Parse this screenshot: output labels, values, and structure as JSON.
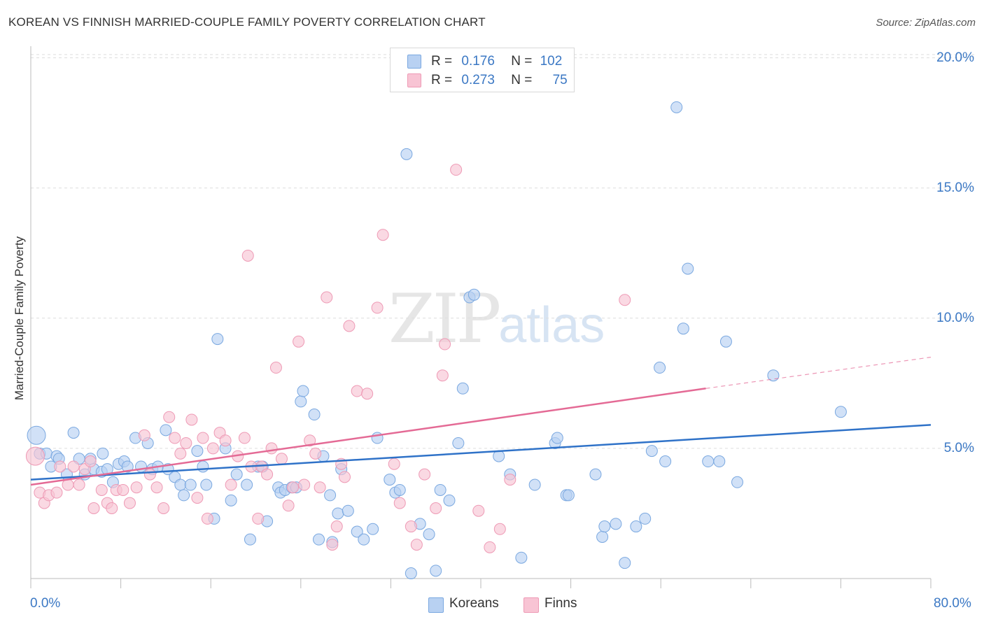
{
  "title": "KOREAN VS FINNISH MARRIED-COUPLE FAMILY POVERTY CORRELATION CHART",
  "source": "Source: ZipAtlas.com",
  "watermark": {
    "zip": "ZIP",
    "atlas": "atlas"
  },
  "legend": {
    "koreans": {
      "r_label": "R =",
      "r_value": "0.176",
      "n_label": "N =",
      "n_value": "102"
    },
    "finns": {
      "r_label": "R =",
      "r_value": "0.273",
      "n_label": "N =",
      "n_value": "75"
    }
  },
  "bottom_legend": {
    "koreans": "Koreans",
    "finns": "Finns"
  },
  "colors": {
    "koreans_fill": "#b8d1f2",
    "koreans_stroke": "#7aa8e0",
    "koreans_line": "#2f72c8",
    "finns_fill": "#f8c4d4",
    "finns_stroke": "#ee9ab5",
    "finns_line": "#e46a95",
    "axis_text": "#3b78c4",
    "grid": "#dddddd"
  },
  "chart_data": {
    "type": "scatter",
    "title": "KOREAN VS FINNISH MARRIED-COUPLE FAMILY POVERTY CORRELATION CHART",
    "ylabel": "Married-Couple Family Poverty",
    "xlim": [
      0,
      80
    ],
    "ylim": [
      0,
      20.5
    ],
    "x_tick_labels": [
      "0.0%",
      "80.0%"
    ],
    "y_ticks": [
      5,
      10,
      15,
      20
    ],
    "y_tick_labels": [
      "5.0%",
      "10.0%",
      "15.0%",
      "20.0%"
    ],
    "grid": "horizontal dashed",
    "legend_position": "top-center",
    "series": [
      {
        "name": "Koreans",
        "r": 0.176,
        "n": 102,
        "trend": {
          "x": [
            0,
            80
          ],
          "y": [
            3.8,
            5.9
          ]
        },
        "points": [
          [
            0.5,
            5.5
          ],
          [
            0.8,
            4.8
          ],
          [
            1.4,
            4.8
          ],
          [
            1.8,
            4.3
          ],
          [
            2.3,
            4.7
          ],
          [
            2.5,
            4.6
          ],
          [
            3.2,
            4.0
          ],
          [
            3.8,
            5.6
          ],
          [
            4.3,
            4.6
          ],
          [
            4.8,
            4.0
          ],
          [
            5.3,
            4.6
          ],
          [
            5.6,
            4.2
          ],
          [
            6.3,
            4.1
          ],
          [
            6.4,
            4.8
          ],
          [
            6.8,
            4.2
          ],
          [
            7.3,
            3.7
          ],
          [
            7.8,
            4.4
          ],
          [
            8.3,
            4.5
          ],
          [
            8.6,
            4.3
          ],
          [
            9.3,
            5.4
          ],
          [
            9.8,
            4.3
          ],
          [
            10.4,
            5.2
          ],
          [
            10.8,
            4.2
          ],
          [
            11.3,
            4.3
          ],
          [
            12.0,
            5.7
          ],
          [
            12.2,
            4.2
          ],
          [
            12.8,
            3.9
          ],
          [
            13.3,
            3.6
          ],
          [
            13.6,
            3.2
          ],
          [
            14.2,
            3.6
          ],
          [
            14.8,
            4.9
          ],
          [
            15.3,
            4.3
          ],
          [
            15.6,
            3.6
          ],
          [
            16.3,
            2.3
          ],
          [
            16.6,
            9.2
          ],
          [
            17.3,
            5.0
          ],
          [
            17.8,
            3.0
          ],
          [
            18.3,
            4.0
          ],
          [
            19.2,
            3.6
          ],
          [
            19.5,
            1.5
          ],
          [
            20.2,
            4.3
          ],
          [
            20.6,
            4.3
          ],
          [
            21.0,
            2.2
          ],
          [
            22.0,
            3.5
          ],
          [
            22.2,
            3.3
          ],
          [
            22.6,
            3.4
          ],
          [
            23.2,
            3.5
          ],
          [
            23.6,
            3.5
          ],
          [
            24.0,
            6.8
          ],
          [
            24.2,
            7.2
          ],
          [
            25.2,
            6.3
          ],
          [
            25.6,
            1.5
          ],
          [
            26.0,
            4.7
          ],
          [
            26.6,
            3.2
          ],
          [
            26.8,
            1.4
          ],
          [
            27.3,
            2.5
          ],
          [
            27.6,
            4.2
          ],
          [
            28.2,
            2.6
          ],
          [
            29.0,
            1.8
          ],
          [
            29.6,
            1.5
          ],
          [
            30.4,
            1.9
          ],
          [
            30.8,
            5.4
          ],
          [
            31.9,
            3.8
          ],
          [
            32.4,
            3.3
          ],
          [
            32.8,
            3.4
          ],
          [
            33.4,
            16.3
          ],
          [
            33.8,
            0.2
          ],
          [
            34.6,
            2.1
          ],
          [
            35.4,
            1.7
          ],
          [
            36.0,
            0.3
          ],
          [
            36.4,
            3.4
          ],
          [
            37.2,
            3.0
          ],
          [
            38.0,
            5.2
          ],
          [
            38.4,
            7.3
          ],
          [
            39.0,
            10.8
          ],
          [
            39.4,
            10.9
          ],
          [
            41.6,
            4.7
          ],
          [
            42.6,
            4.0
          ],
          [
            43.6,
            0.8
          ],
          [
            44.8,
            3.6
          ],
          [
            46.6,
            5.2
          ],
          [
            46.8,
            5.4
          ],
          [
            47.6,
            3.2
          ],
          [
            47.8,
            3.2
          ],
          [
            50.2,
            4.0
          ],
          [
            50.8,
            1.6
          ],
          [
            51.0,
            2.0
          ],
          [
            52.0,
            2.1
          ],
          [
            52.8,
            0.6
          ],
          [
            53.8,
            2.0
          ],
          [
            54.6,
            2.3
          ],
          [
            55.2,
            4.9
          ],
          [
            55.9,
            8.1
          ],
          [
            56.4,
            4.5
          ],
          [
            57.4,
            18.1
          ],
          [
            58.0,
            9.6
          ],
          [
            58.4,
            11.9
          ],
          [
            60.2,
            4.5
          ],
          [
            61.2,
            4.5
          ],
          [
            61.8,
            9.1
          ],
          [
            62.8,
            3.7
          ],
          [
            66.0,
            7.8
          ],
          [
            72.0,
            6.4
          ]
        ]
      },
      {
        "name": "Finns",
        "r": 0.273,
        "n": 75,
        "trend": {
          "x": [
            0,
            60
          ],
          "y": [
            3.6,
            7.3
          ],
          "dashed_extension": {
            "x": [
              60,
              80
            ],
            "y": [
              7.3,
              8.5
            ]
          }
        },
        "points": [
          [
            0.4,
            4.7
          ],
          [
            0.8,
            3.3
          ],
          [
            1.2,
            2.9
          ],
          [
            1.6,
            3.2
          ],
          [
            2.3,
            3.3
          ],
          [
            2.6,
            4.3
          ],
          [
            3.3,
            3.6
          ],
          [
            3.8,
            4.3
          ],
          [
            4.3,
            3.6
          ],
          [
            4.8,
            4.2
          ],
          [
            5.3,
            4.5
          ],
          [
            5.6,
            2.7
          ],
          [
            6.3,
            3.4
          ],
          [
            6.8,
            2.9
          ],
          [
            7.2,
            2.7
          ],
          [
            7.6,
            3.4
          ],
          [
            8.2,
            3.4
          ],
          [
            8.8,
            2.9
          ],
          [
            9.4,
            3.5
          ],
          [
            10.1,
            5.5
          ],
          [
            10.6,
            4.0
          ],
          [
            11.2,
            3.5
          ],
          [
            11.8,
            2.7
          ],
          [
            12.3,
            6.2
          ],
          [
            12.8,
            5.4
          ],
          [
            13.3,
            4.8
          ],
          [
            13.8,
            5.2
          ],
          [
            14.3,
            6.1
          ],
          [
            14.8,
            3.1
          ],
          [
            15.3,
            5.4
          ],
          [
            15.7,
            2.3
          ],
          [
            16.2,
            5.0
          ],
          [
            16.8,
            5.6
          ],
          [
            17.3,
            5.3
          ],
          [
            17.8,
            3.6
          ],
          [
            18.4,
            4.7
          ],
          [
            19.0,
            5.4
          ],
          [
            19.3,
            12.4
          ],
          [
            19.6,
            4.3
          ],
          [
            20.2,
            2.3
          ],
          [
            20.5,
            4.3
          ],
          [
            21.0,
            4.0
          ],
          [
            21.4,
            5.0
          ],
          [
            21.8,
            8.1
          ],
          [
            22.3,
            4.6
          ],
          [
            22.9,
            2.8
          ],
          [
            23.3,
            3.5
          ],
          [
            23.8,
            9.1
          ],
          [
            24.3,
            3.6
          ],
          [
            24.8,
            5.3
          ],
          [
            25.3,
            4.8
          ],
          [
            25.7,
            3.5
          ],
          [
            26.3,
            10.8
          ],
          [
            26.8,
            1.3
          ],
          [
            27.2,
            2.0
          ],
          [
            27.6,
            4.4
          ],
          [
            27.9,
            3.9
          ],
          [
            28.3,
            9.7
          ],
          [
            29.0,
            7.2
          ],
          [
            29.9,
            7.1
          ],
          [
            30.8,
            10.4
          ],
          [
            31.3,
            13.2
          ],
          [
            32.3,
            4.4
          ],
          [
            32.8,
            2.9
          ],
          [
            33.8,
            2.0
          ],
          [
            34.3,
            1.3
          ],
          [
            35.0,
            4.0
          ],
          [
            36.0,
            2.7
          ],
          [
            36.6,
            7.8
          ],
          [
            36.8,
            9.0
          ],
          [
            37.8,
            15.7
          ],
          [
            39.8,
            2.6
          ],
          [
            40.8,
            1.2
          ],
          [
            41.7,
            1.9
          ],
          [
            42.6,
            3.8
          ],
          [
            52.8,
            10.7
          ]
        ]
      }
    ]
  }
}
